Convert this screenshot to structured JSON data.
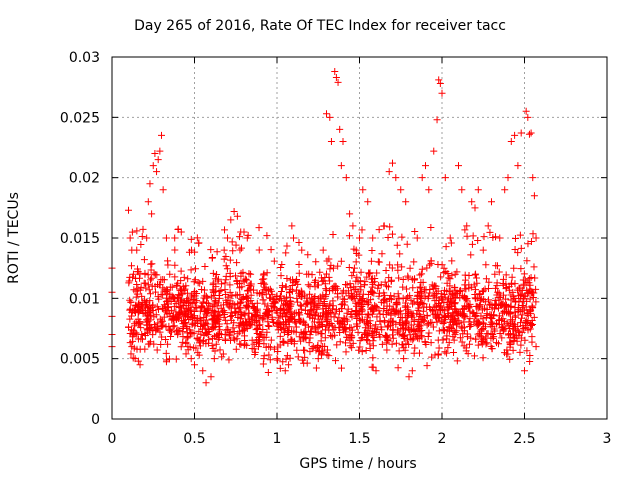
{
  "chart_data": {
    "type": "scatter",
    "title": "Day 265 of 2016, Rate Of TEC Index for receiver tacc",
    "xlabel": "GPS time / hours",
    "ylabel": "ROTI / TECUs",
    "xlim": [
      0,
      3
    ],
    "ylim": [
      0,
      0.03
    ],
    "xticks": [
      0,
      0.5,
      1,
      1.5,
      2,
      2.5,
      3
    ],
    "xtick_labels": [
      "0",
      "0.5",
      "1",
      "1.5",
      "2",
      "2.5",
      "3"
    ],
    "yticks": [
      0,
      0.005,
      0.01,
      0.015,
      0.02,
      0.025,
      0.03
    ],
    "ytick_labels": [
      "0",
      "0.005",
      "0.01",
      "0.015",
      "0.02",
      "0.025",
      "0.03"
    ],
    "grid": true,
    "marker": "+",
    "marker_color": "#ff0000",
    "series": [
      {
        "name": "ROTI",
        "points": [
          [
            0.0,
            0.0125
          ],
          [
            0.0,
            0.0105
          ],
          [
            0.0,
            0.0085
          ],
          [
            0.0,
            0.007
          ],
          [
            0.0,
            0.006
          ],
          [
            0.1,
            0.0173
          ],
          [
            0.11,
            0.015
          ],
          [
            0.12,
            0.014
          ],
          [
            0.13,
            0.012
          ],
          [
            0.15,
            0.014
          ],
          [
            0.12,
            0.006
          ],
          [
            0.14,
            0.005
          ],
          [
            0.16,
            0.0048
          ],
          [
            0.17,
            0.0045
          ],
          [
            0.18,
            0.007
          ],
          [
            0.2,
            0.012
          ],
          [
            0.21,
            0.015
          ],
          [
            0.22,
            0.018
          ],
          [
            0.23,
            0.0195
          ],
          [
            0.24,
            0.017
          ],
          [
            0.25,
            0.021
          ],
          [
            0.26,
            0.022
          ],
          [
            0.27,
            0.0205
          ],
          [
            0.28,
            0.0215
          ],
          [
            0.29,
            0.0222
          ],
          [
            0.3,
            0.0235
          ],
          [
            0.31,
            0.019
          ],
          [
            0.33,
            0.015
          ],
          [
            0.35,
            0.012
          ],
          [
            0.37,
            0.01
          ],
          [
            0.38,
            0.015
          ],
          [
            0.4,
            0.0157
          ],
          [
            0.42,
            0.0155
          ],
          [
            0.44,
            0.008
          ],
          [
            0.46,
            0.006
          ],
          [
            0.48,
            0.005
          ],
          [
            0.5,
            0.0045
          ],
          [
            0.52,
            0.0055
          ],
          [
            0.55,
            0.004
          ],
          [
            0.57,
            0.003
          ],
          [
            0.6,
            0.0035
          ],
          [
            0.62,
            0.005
          ],
          [
            0.65,
            0.01
          ],
          [
            0.68,
            0.014
          ],
          [
            0.7,
            0.015
          ],
          [
            0.72,
            0.0165
          ],
          [
            0.74,
            0.0172
          ],
          [
            0.76,
            0.0168
          ],
          [
            0.78,
            0.0155
          ],
          [
            0.8,
            0.0155
          ],
          [
            0.82,
            0.015
          ],
          [
            0.84,
            0.012
          ],
          [
            0.87,
            0.009
          ],
          [
            0.9,
            0.007
          ],
          [
            0.92,
            0.005
          ],
          [
            0.95,
            0.006
          ],
          [
            0.98,
            0.008
          ],
          [
            1.0,
            0.005
          ],
          [
            1.02,
            0.0042
          ],
          [
            1.05,
            0.004
          ],
          [
            1.07,
            0.0045
          ],
          [
            1.09,
            0.016
          ],
          [
            1.1,
            0.015
          ],
          [
            1.12,
            0.01
          ],
          [
            1.15,
            0.014
          ],
          [
            1.18,
            0.012
          ],
          [
            1.2,
            0.011
          ],
          [
            1.22,
            0.006
          ],
          [
            1.25,
            0.005
          ],
          [
            1.28,
            0.014
          ],
          [
            1.3,
            0.0253
          ],
          [
            1.32,
            0.025
          ],
          [
            1.33,
            0.023
          ],
          [
            1.35,
            0.0288
          ],
          [
            1.36,
            0.0283
          ],
          [
            1.37,
            0.0279
          ],
          [
            1.38,
            0.024
          ],
          [
            1.39,
            0.021
          ],
          [
            1.4,
            0.023
          ],
          [
            1.42,
            0.02
          ],
          [
            1.44,
            0.017
          ],
          [
            1.46,
            0.016
          ],
          [
            1.48,
            0.014
          ],
          [
            1.5,
            0.015
          ],
          [
            1.52,
            0.019
          ],
          [
            1.55,
            0.018
          ],
          [
            1.58,
            0.015
          ],
          [
            1.6,
            0.004
          ],
          [
            1.62,
            0.013
          ],
          [
            1.65,
            0.016
          ],
          [
            1.68,
            0.0205
          ],
          [
            1.7,
            0.0212
          ],
          [
            1.72,
            0.02
          ],
          [
            1.75,
            0.019
          ],
          [
            1.78,
            0.018
          ],
          [
            1.8,
            0.0035
          ],
          [
            1.82,
            0.004
          ],
          [
            1.85,
            0.015
          ],
          [
            1.88,
            0.02
          ],
          [
            1.9,
            0.021
          ],
          [
            1.92,
            0.019
          ],
          [
            1.95,
            0.0222
          ],
          [
            1.97,
            0.0248
          ],
          [
            1.98,
            0.0281
          ],
          [
            1.99,
            0.0278
          ],
          [
            2.0,
            0.027
          ],
          [
            2.02,
            0.02
          ],
          [
            2.05,
            0.015
          ],
          [
            2.08,
            0.012
          ],
          [
            2.1,
            0.021
          ],
          [
            2.12,
            0.019
          ],
          [
            2.15,
            0.016
          ],
          [
            2.18,
            0.018
          ],
          [
            2.2,
            0.0175
          ],
          [
            2.22,
            0.019
          ],
          [
            2.25,
            0.014
          ],
          [
            2.28,
            0.016
          ],
          [
            2.3,
            0.018
          ],
          [
            2.32,
            0.012
          ],
          [
            2.35,
            0.015
          ],
          [
            2.38,
            0.019
          ],
          [
            2.4,
            0.02
          ],
          [
            2.42,
            0.023
          ],
          [
            2.44,
            0.0235
          ],
          [
            2.46,
            0.021
          ],
          [
            2.48,
            0.0237
          ],
          [
            2.5,
            0.004
          ],
          [
            2.51,
            0.0255
          ],
          [
            2.52,
            0.025
          ],
          [
            2.53,
            0.0236
          ],
          [
            2.54,
            0.0237
          ],
          [
            2.55,
            0.02
          ],
          [
            2.56,
            0.0185
          ],
          [
            2.57,
            0.015
          ],
          [
            2.57,
            0.006
          ]
        ]
      }
    ],
    "dense_band": {
      "x_range": [
        0.1,
        2.57
      ],
      "typical_range": [
        0.005,
        0.012
      ],
      "note": "dense cloud of points between these values across the time range"
    }
  }
}
